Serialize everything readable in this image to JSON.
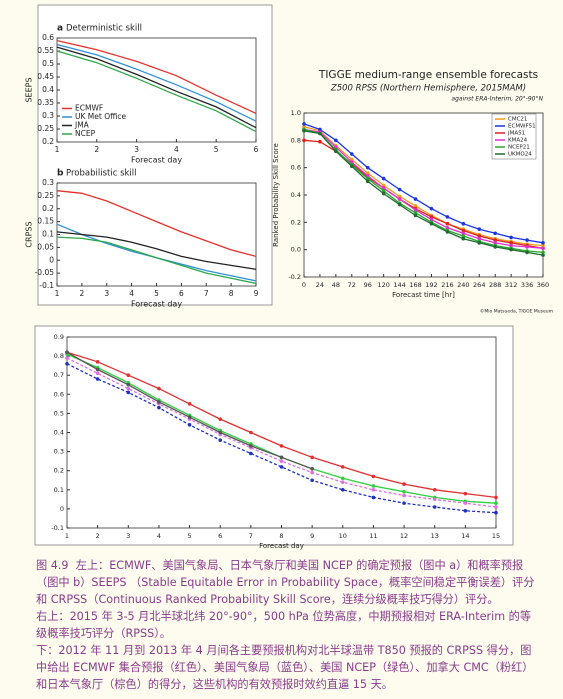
{
  "chart_data": [
    {
      "type": "line",
      "panel": "a",
      "title": "Deterministic skill",
      "xlabel": "Forecast day",
      "ylabel": "SEEPS",
      "x": [
        1,
        2,
        3,
        4,
        5,
        6
      ],
      "xlim": [
        1,
        6
      ],
      "xticks": [
        1,
        2,
        3,
        4,
        5,
        6
      ],
      "ylim": [
        0.2,
        0.6
      ],
      "yticks": [
        0.2,
        0.25,
        0.3,
        0.35,
        0.4,
        0.45,
        0.5,
        0.55,
        0.6
      ],
      "legend": "lower left",
      "series": [
        {
          "name": "ECMWF",
          "color": "#e8312a",
          "values": [
            0.59,
            0.555,
            0.51,
            0.455,
            0.38,
            0.31
          ]
        },
        {
          "name": "UK Met Office",
          "color": "#2f8fd8",
          "values": [
            0.575,
            0.535,
            0.48,
            0.42,
            0.355,
            0.28
          ]
        },
        {
          "name": "JMA",
          "color": "#222222",
          "values": [
            0.565,
            0.52,
            0.46,
            0.395,
            0.335,
            0.255
          ]
        },
        {
          "name": "NCEP",
          "color": "#2aa84a",
          "values": [
            0.55,
            0.505,
            0.445,
            0.38,
            0.32,
            0.24
          ]
        }
      ]
    },
    {
      "type": "line",
      "panel": "b",
      "title": "Probabilistic skill",
      "xlabel": "Forecast day",
      "ylabel": "CRPSS",
      "x": [
        1,
        2,
        3,
        4,
        5,
        6,
        7,
        8,
        9
      ],
      "xlim": [
        1,
        9
      ],
      "xticks": [
        1,
        2,
        3,
        4,
        5,
        6,
        7,
        8,
        9
      ],
      "ylim": [
        -0.1,
        0.3
      ],
      "yticks": [
        -0.1,
        -0.05,
        0,
        0.05,
        0.1,
        0.15,
        0.2,
        0.25,
        0.3
      ],
      "series": [
        {
          "color": "#e8312a",
          "values": [
            0.27,
            0.26,
            0.23,
            0.19,
            0.15,
            0.11,
            0.075,
            0.04,
            0.015
          ]
        },
        {
          "color": "#2f8fd8",
          "values": [
            0.14,
            0.1,
            0.065,
            0.035,
            0.01,
            -0.015,
            -0.04,
            -0.06,
            -0.08
          ]
        },
        {
          "color": "#222222",
          "values": [
            0.11,
            0.1,
            0.09,
            0.07,
            0.045,
            0.015,
            -0.005,
            -0.02,
            -0.035
          ]
        },
        {
          "color": "#2aa84a",
          "values": [
            0.09,
            0.085,
            0.07,
            0.04,
            0.01,
            -0.02,
            -0.05,
            -0.07,
            -0.09
          ]
        }
      ]
    },
    {
      "type": "line",
      "title": "TIGGE medium-range ensemble forecasts",
      "subtitle": "Z500 RPSS (Northern Hemisphere, 2015MAM)",
      "note": "against ERA-Interim, 20°-90°N",
      "credit": "©Mio Matsueda, TIGGE Museum",
      "xlabel": "Forecast time [hr]",
      "ylabel": "Ranked Probability Skill Score",
      "markers": true,
      "legend": "upper right",
      "x": [
        0,
        24,
        48,
        72,
        96,
        120,
        144,
        168,
        192,
        216,
        240,
        264,
        288,
        312,
        336,
        360
      ],
      "xlim": [
        0,
        360
      ],
      "xticks": [
        0,
        24,
        48,
        72,
        96,
        120,
        144,
        168,
        192,
        216,
        240,
        264,
        288,
        312,
        336,
        360
      ],
      "ylim": [
        -0.2,
        1.0
      ],
      "yticks": [
        -0.2,
        {
          "value": 0,
          "label": "0.0"
        },
        0.2,
        0.4,
        0.6,
        0.8,
        {
          "value": 1,
          "label": "1.0"
        }
      ],
      "series": [
        {
          "name": "CMC21",
          "color": "#f39a1e",
          "values": [
            0.9,
            0.87,
            0.76,
            0.66,
            0.56,
            0.47,
            0.39,
            0.32,
            0.25,
            0.19,
            0.15,
            0.11,
            0.08,
            0.06,
            0.04,
            0.03
          ]
        },
        {
          "name": "ECMWF51",
          "color": "#1a33e6",
          "values": [
            0.92,
            0.88,
            0.8,
            0.7,
            0.6,
            0.52,
            0.44,
            0.37,
            0.3,
            0.24,
            0.19,
            0.15,
            0.12,
            0.09,
            0.07,
            0.05
          ]
        },
        {
          "name": "JMA51",
          "color": "#e0201e",
          "values": [
            0.8,
            0.79,
            0.72,
            0.63,
            0.53,
            0.45,
            0.37,
            0.3,
            0.24,
            0.19,
            0.14,
            0.1,
            0.07,
            0.05,
            0.03,
            0.01
          ]
        },
        {
          "name": "KMA24",
          "color": "#e030d0",
          "values": [
            0.88,
            0.86,
            0.75,
            0.64,
            0.54,
            0.45,
            0.37,
            0.29,
            0.22,
            0.16,
            0.12,
            0.08,
            0.05,
            0.03,
            0.02,
            0.01
          ]
        },
        {
          "name": "NCEP21",
          "color": "#28a830",
          "values": [
            0.88,
            0.85,
            0.73,
            0.62,
            0.52,
            0.43,
            0.34,
            0.27,
            0.2,
            0.14,
            0.1,
            0.06,
            0.03,
            0.01,
            -0.01,
            -0.02
          ]
        },
        {
          "name": "UKMO24",
          "color": "#1e6e30",
          "values": [
            0.87,
            0.85,
            0.72,
            0.61,
            0.5,
            0.41,
            0.33,
            0.25,
            0.19,
            0.13,
            0.08,
            0.05,
            0.02,
            0,
            -0.02,
            -0.04
          ]
        }
      ]
    },
    {
      "type": "line",
      "xlabel": "Forecast day",
      "markers": true,
      "x": [
        1,
        2,
        3,
        4,
        5,
        6,
        7,
        8,
        9,
        10,
        11,
        12,
        13,
        14,
        15
      ],
      "xlim": [
        1,
        15
      ],
      "xticks": [
        1,
        2,
        3,
        4,
        5,
        6,
        7,
        8,
        9,
        10,
        11,
        12,
        13,
        14,
        15
      ],
      "ylim": [
        -0.1,
        0.9
      ],
      "yticks": [
        -0.1,
        0,
        0.1,
        0.2,
        0.3,
        0.4,
        0.5,
        0.6,
        0.7,
        0.8,
        0.9
      ],
      "series": [
        {
          "color": "#e03030",
          "values": [
            0.82,
            0.77,
            0.7,
            0.63,
            0.55,
            0.47,
            0.4,
            0.33,
            0.27,
            0.22,
            0.17,
            0.13,
            0.1,
            0.08,
            0.06
          ]
        },
        {
          "color": "#30d040",
          "values": [
            0.81,
            0.74,
            0.66,
            0.57,
            0.49,
            0.41,
            0.34,
            0.27,
            0.21,
            0.16,
            0.12,
            0.09,
            0.06,
            0.04,
            0.03
          ]
        },
        {
          "color": "#e070e0",
          "dashed": true,
          "values": [
            0.79,
            0.71,
            0.63,
            0.55,
            0.47,
            0.39,
            0.32,
            0.25,
            0.19,
            0.14,
            0.1,
            0.07,
            0.05,
            0.03,
            0.01
          ]
        },
        {
          "color": "#2030c0",
          "dashed": true,
          "values": [
            0.76,
            0.68,
            0.61,
            0.53,
            0.44,
            0.36,
            0.29,
            0.22,
            0.15,
            0.1,
            0.06,
            0.03,
            0.01,
            -0.01,
            -0.02
          ]
        },
        {
          "color": "#555555",
          "values": [
            0.82,
            0.73,
            0.65,
            0.56,
            0.48,
            0.4,
            0.33,
            0.27,
            0.21,
            null,
            null,
            null,
            null,
            null,
            null
          ]
        }
      ]
    }
  ],
  "caption": {
    "label": "图 4.9",
    "paragraphs": [
      "左上：ECMWF、美国气象局、日本气象厅和美国 NCEP 的确定预报（图中 a）和概率预报（图中 b）SEEPS （Stable Equitable Error in Probability Space，概率空间稳定平衡误差）评分和 CRPSS（Continuous Ranked Probability Skill Score，连续分级概率技巧得分）评分。",
      "右上：2015 年 3-5 月北半球北纬 20°-90°，500 hPa 位势高度，中期预报相对 ERA-Interim 的等级概率技巧评分（RPSS）。",
      "下：2012 年 11 月到 2013 年 4 月间各主要预报机构对北半球温带 T850 预报的 CRPSS 得分，图中给出 ECMWF 集合预报（红色）、美国气象局（蓝色）、美国 NCEP（绿色）、加拿大 CMC（粉红）和日本气象厅（棕色）的得分，这些机构的有效预报时效约直逼 15 天。"
    ]
  }
}
